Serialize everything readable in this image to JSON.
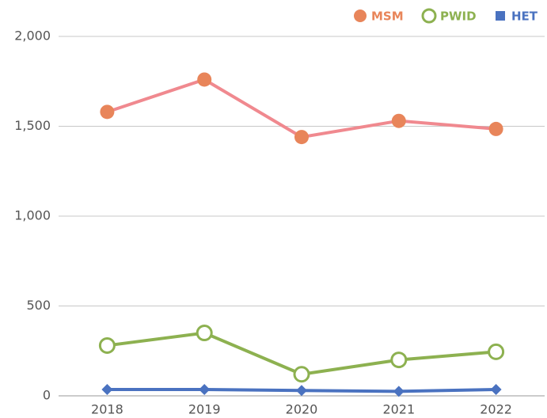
{
  "chart_data": {
    "type": "line",
    "categories": [
      "2018",
      "2019",
      "2020",
      "2021",
      "2022"
    ],
    "series": [
      {
        "name": "MSM",
        "color": "#e8855a",
        "line_color": "#f0898f",
        "marker": "circle",
        "values": [
          1580,
          1760,
          1440,
          1530,
          1485
        ]
      },
      {
        "name": "PWID",
        "color": "#8db150",
        "line_color": "#8db150",
        "marker": "open-circle",
        "values": [
          280,
          350,
          120,
          200,
          245
        ]
      },
      {
        "name": "HET",
        "color": "#4a72c0",
        "line_color": "#4a72c0",
        "marker": "diamond",
        "values": [
          35,
          35,
          30,
          25,
          35
        ]
      }
    ],
    "ylim": [
      0,
      2000
    ],
    "yticks": [
      0,
      500,
      {
        "value": 1000,
        "label": "1,000"
      },
      {
        "value": 1500,
        "label": "1,500"
      },
      {
        "value": 2000,
        "label": "2,000"
      }
    ],
    "grid": true,
    "legend": "top-right"
  }
}
